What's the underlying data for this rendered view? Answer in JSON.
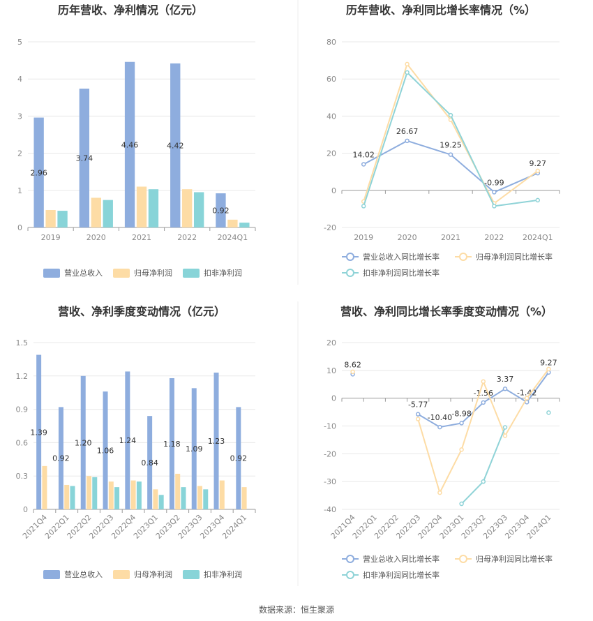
{
  "source_text": "数据来源：恒生聚源",
  "colors": {
    "revenue": "#8eadde",
    "net": "#fddca5",
    "deducted": "#88d4d8",
    "deducted_line": "#8fd3d7",
    "grid": "#e8e8e8",
    "axis": "#999999"
  },
  "chart_data": [
    {
      "type": "bar",
      "title": "历年营收、净利情况（亿元）",
      "categories": [
        "2019",
        "2020",
        "2021",
        "2022",
        "2024Q1"
      ],
      "ylim": [
        0,
        5
      ],
      "yticks": [
        "0",
        "1",
        "2",
        "3",
        "4",
        "5"
      ],
      "series": [
        {
          "name": "营业总收入",
          "values": [
            2.96,
            3.74,
            4.46,
            4.42,
            0.92
          ],
          "labels": [
            "2.96",
            "3.74",
            "4.46",
            "4.42",
            "0.92"
          ]
        },
        {
          "name": "归母净利润",
          "values": [
            0.47,
            0.8,
            1.1,
            1.03,
            0.21
          ]
        },
        {
          "name": "扣非净利润",
          "values": [
            0.45,
            0.74,
            1.03,
            0.95,
            0.13
          ]
        }
      ],
      "legend": "bottom"
    },
    {
      "type": "line",
      "title": "历年营收、净利同比增长率情况（%）",
      "categories": [
        "2019",
        "2020",
        "2021",
        "2022",
        "2024Q1"
      ],
      "ylim": [
        -20,
        80
      ],
      "yticks": [
        "-20",
        "0",
        "20",
        "40",
        "60",
        "80"
      ],
      "series": [
        {
          "name": "营业总收入同比增长率",
          "values": [
            14.02,
            26.67,
            19.25,
            -0.99,
            9.27
          ],
          "labels": [
            "14.02",
            "26.67",
            "19.25",
            "-0.99",
            "9.27"
          ]
        },
        {
          "name": "归母净利润同比增长率",
          "values": [
            -6,
            68,
            38,
            -7,
            10.5
          ]
        },
        {
          "name": "扣非净利润同比增长率",
          "values": [
            -8.5,
            63.5,
            40.5,
            -8.5,
            -5.3
          ]
        }
      ],
      "legend": "bottom"
    },
    {
      "type": "bar",
      "title": "营收、净利季度变动情况（亿元）",
      "categories": [
        "2021Q4",
        "2022Q1",
        "2022Q2",
        "2022Q3",
        "2022Q4",
        "2023Q1",
        "2023Q2",
        "2023Q3",
        "2023Q4",
        "2024Q1"
      ],
      "ylim": [
        0,
        1.5
      ],
      "yticks": [
        "0",
        "0.3",
        "0.6",
        "0.9",
        "1.2",
        "1.5"
      ],
      "series": [
        {
          "name": "营业总收入",
          "values": [
            1.39,
            0.92,
            1.2,
            1.06,
            1.24,
            0.84,
            1.18,
            1.09,
            1.23,
            0.92
          ],
          "labels": [
            "1.39",
            "0.92",
            "1.20",
            "1.06",
            "1.24",
            "0.84",
            "1.18",
            "1.09",
            "1.23",
            "0.92"
          ]
        },
        {
          "name": "归母净利润",
          "values": [
            0.39,
            0.22,
            0.3,
            0.25,
            0.26,
            0.18,
            0.32,
            0.21,
            0.26,
            0.2
          ]
        },
        {
          "name": "扣非净利润",
          "values": [
            null,
            0.21,
            0.29,
            0.2,
            0.25,
            0.13,
            0.2,
            0.18,
            null,
            null
          ]
        }
      ],
      "legend": "bottom"
    },
    {
      "type": "line",
      "title": "营收、净利同比增长率季度变动情况（%）",
      "categories": [
        "2021Q4",
        "2022Q1",
        "2022Q2",
        "2022Q3",
        "2022Q4",
        "2023Q1",
        "2023Q2",
        "2023Q3",
        "2023Q4",
        "2024Q1"
      ],
      "ylim": [
        -40,
        20
      ],
      "yticks": [
        "-40",
        "-30",
        "-20",
        "-10",
        "0",
        "10",
        "20"
      ],
      "series": [
        {
          "name": "营业总收入同比增长率",
          "values": [
            8.62,
            null,
            null,
            -5.77,
            -10.4,
            -8.98,
            -1.56,
            3.37,
            -1.42,
            9.27
          ],
          "labels": [
            "8.62",
            "",
            "",
            "-5.77",
            "-10.40",
            "-8.98",
            "-1.56",
            "3.37",
            "-1.42",
            "9.27"
          ]
        },
        {
          "name": "归母净利润同比增长率",
          "values": [
            9.5,
            null,
            null,
            -7.5,
            -34,
            -18.5,
            6,
            -13.5,
            0,
            10.5
          ]
        },
        {
          "name": "扣非净利润同比增长率",
          "values": [
            null,
            null,
            null,
            null,
            null,
            -38,
            -30,
            -10.5,
            null,
            -5.2
          ]
        }
      ],
      "legend": "bottom"
    }
  ]
}
